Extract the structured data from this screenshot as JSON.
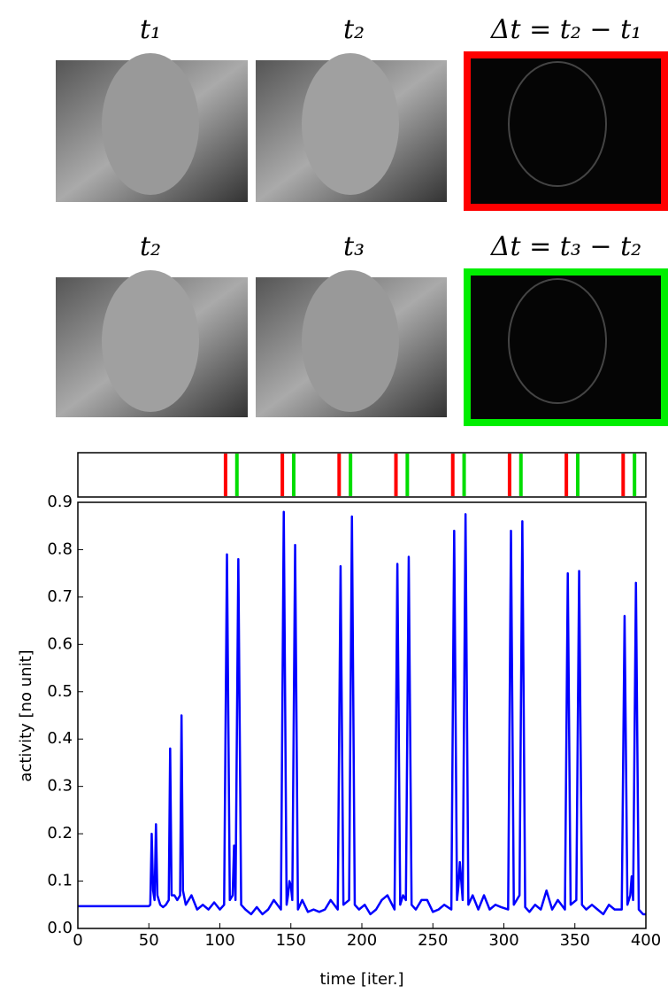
{
  "image_labels": {
    "row1": [
      "t₁",
      "t₂",
      "Δt = t₂ − t₁"
    ],
    "row2": [
      "t₂",
      "t₃",
      "Δt = t₃ − t₂"
    ]
  },
  "chart_data": {
    "type": "line",
    "xlabel": "time [iter.]",
    "ylabel": "activity [no unit]",
    "xlim": [
      0,
      400
    ],
    "ylim": [
      0,
      0.9
    ],
    "xticks": [
      0,
      50,
      100,
      150,
      200,
      250,
      300,
      350,
      400
    ],
    "yticks": [
      {
        "value": 0,
        "label": "0.0"
      },
      0.1,
      0.2,
      0.3,
      0.4,
      0.5,
      0.6,
      0.7,
      0.8,
      0.9
    ],
    "x": [
      0,
      50,
      51,
      52,
      53,
      54,
      55,
      56,
      58,
      60,
      62,
      64,
      65,
      66,
      68,
      70,
      72,
      73,
      74,
      76,
      80,
      84,
      88,
      92,
      96,
      100,
      103,
      105,
      107,
      109,
      110,
      111,
      113,
      115,
      118,
      122,
      126,
      130,
      134,
      138,
      143,
      145,
      147,
      148,
      149,
      150,
      151,
      153,
      155,
      158,
      162,
      166,
      170,
      174,
      178,
      183,
      185,
      187,
      191,
      193,
      195,
      198,
      202,
      206,
      210,
      214,
      218,
      223,
      225,
      227,
      229,
      231,
      233,
      235,
      238,
      242,
      246,
      250,
      254,
      258,
      263,
      265,
      267,
      268,
      269,
      270,
      271,
      273,
      275,
      278,
      282,
      286,
      290,
      294,
      298,
      303,
      305,
      307,
      311,
      313,
      315,
      318,
      322,
      326,
      330,
      334,
      338,
      343,
      345,
      347,
      351,
      353,
      355,
      358,
      362,
      366,
      370,
      374,
      378,
      383,
      385,
      387,
      389,
      390,
      391,
      393,
      395,
      398,
      400
    ],
    "series": [
      {
        "color": "#0000ff",
        "values": [
          0.047,
          0.047,
          0.05,
          0.2,
          0.08,
          0.06,
          0.22,
          0.07,
          0.05,
          0.045,
          0.05,
          0.06,
          0.38,
          0.07,
          0.07,
          0.06,
          0.07,
          0.45,
          0.08,
          0.05,
          0.07,
          0.04,
          0.05,
          0.04,
          0.055,
          0.04,
          0.05,
          0.79,
          0.06,
          0.07,
          0.175,
          0.06,
          0.78,
          0.05,
          0.04,
          0.03,
          0.045,
          0.03,
          0.04,
          0.06,
          0.04,
          0.88,
          0.05,
          0.07,
          0.1,
          0.09,
          0.06,
          0.81,
          0.04,
          0.06,
          0.035,
          0.04,
          0.035,
          0.04,
          0.06,
          0.04,
          0.765,
          0.05,
          0.06,
          0.87,
          0.05,
          0.04,
          0.05,
          0.03,
          0.04,
          0.06,
          0.07,
          0.04,
          0.77,
          0.05,
          0.07,
          0.06,
          0.785,
          0.05,
          0.04,
          0.06,
          0.06,
          0.035,
          0.04,
          0.05,
          0.04,
          0.84,
          0.06,
          0.09,
          0.14,
          0.1,
          0.06,
          0.875,
          0.05,
          0.07,
          0.04,
          0.07,
          0.04,
          0.05,
          0.045,
          0.04,
          0.84,
          0.05,
          0.07,
          0.86,
          0.045,
          0.035,
          0.05,
          0.04,
          0.08,
          0.04,
          0.06,
          0.04,
          0.75,
          0.05,
          0.06,
          0.755,
          0.05,
          0.04,
          0.05,
          0.04,
          0.03,
          0.05,
          0.04,
          0.04,
          0.66,
          0.05,
          0.07,
          0.11,
          0.06,
          0.73,
          0.04,
          0.03,
          0.03
        ]
      }
    ],
    "events": [
      {
        "color": "#ff0000",
        "x": [
          104,
          144,
          184,
          224,
          264,
          304,
          344,
          384
        ]
      },
      {
        "color": "#00dd00",
        "x": [
          112,
          152,
          192,
          232,
          272,
          312,
          352,
          392
        ]
      }
    ]
  }
}
